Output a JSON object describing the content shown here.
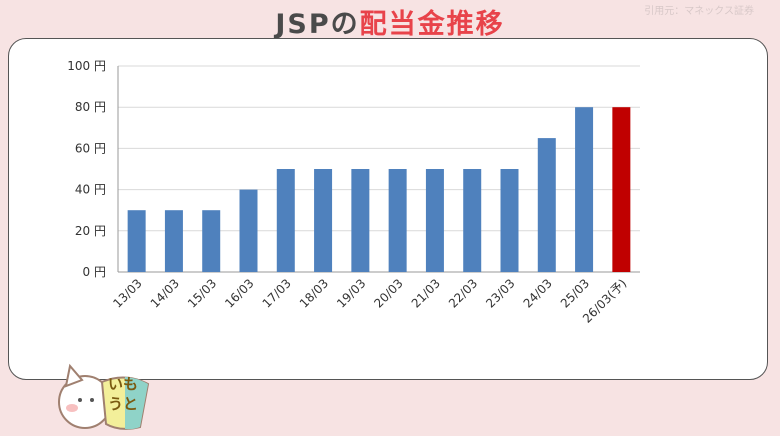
{
  "header": {
    "title_prefix": "JSPの",
    "title_highlight": "配当金推移",
    "source": "引用元：マネックス証券"
  },
  "mascot": {
    "badge_text": "いもうと"
  },
  "chart_data": {
    "type": "bar",
    "categories": [
      "13/03",
      "14/03",
      "15/03",
      "16/03",
      "17/03",
      "18/03",
      "19/03",
      "20/03",
      "21/03",
      "22/03",
      "23/03",
      "24/03",
      "25/03",
      "26/03(予)"
    ],
    "values": [
      30,
      30,
      30,
      40,
      50,
      50,
      50,
      50,
      50,
      50,
      50,
      65,
      80,
      80
    ],
    "forecast": [
      false,
      false,
      false,
      false,
      false,
      false,
      false,
      false,
      false,
      false,
      false,
      false,
      false,
      true
    ],
    "ylim": [
      0,
      100
    ],
    "yticks": [
      0,
      20,
      40,
      60,
      80,
      100
    ],
    "ytick_labels": [
      "0 円",
      "20 円",
      "40 円",
      "60 円",
      "80 円",
      "100 円"
    ],
    "grid": true,
    "colors": {
      "actual": "#4f81bd",
      "forecast": "#c00000"
    },
    "title": "",
    "xlabel": "",
    "ylabel": ""
  }
}
